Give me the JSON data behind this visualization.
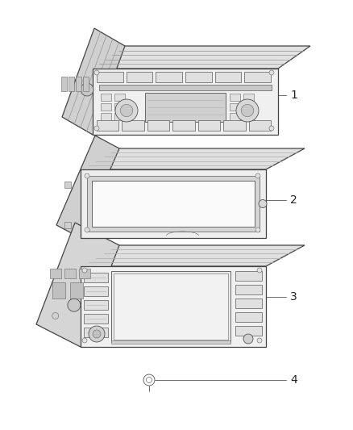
{
  "bg": "#ffffff",
  "lc": "#444444",
  "lc2": "#666666",
  "lc_light": "#aaaaaa",
  "fc_body": "#f5f5f5",
  "fc_top": "#e8e8e8",
  "fc_side": "#d8d8d8",
  "fc_screen": "#e0e0e0",
  "fc_screen_white": "#f8f8f8",
  "fig_w": 4.38,
  "fig_h": 5.33,
  "dpi": 100,
  "items": [
    "1",
    "2",
    "3",
    "4"
  ]
}
